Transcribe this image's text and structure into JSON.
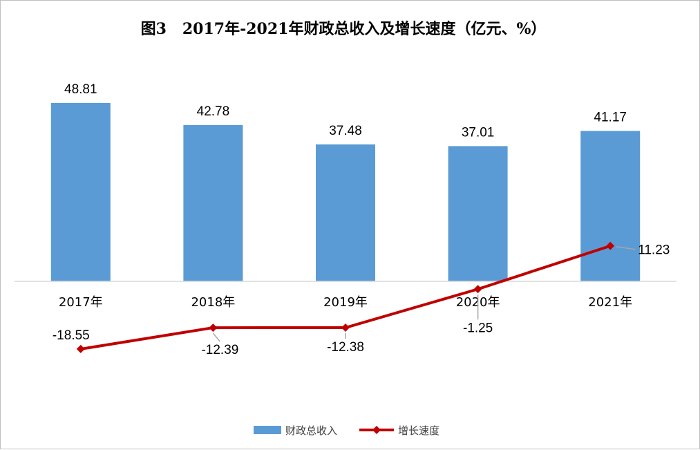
{
  "chart_data": {
    "type": "bar+line",
    "title": "图3   2017年-2021年财政总收入及增长速度（亿元、%）",
    "categories": [
      "2017年",
      "2018年",
      "2019年",
      "2020年",
      "2021年"
    ],
    "series": [
      {
        "name": "财政总收入",
        "type": "bar",
        "axis": "primary",
        "values": [
          48.81,
          42.78,
          37.48,
          37.01,
          41.17
        ],
        "labels": [
          "48.81",
          "42.78",
          "37.48",
          "37.01",
          "41.17"
        ],
        "color": "#5b9bd5"
      },
      {
        "name": "增长速度",
        "type": "line",
        "axis": "secondary",
        "values": [
          -18.55,
          -12.39,
          -12.38,
          -1.25,
          11.23
        ],
        "labels": [
          "-18.55",
          "-12.39",
          "-12.38",
          "-1.25",
          "11.23"
        ],
        "color": "#c00000",
        "marker": "diamond"
      }
    ],
    "legend_position": "bottom",
    "grid": false
  }
}
